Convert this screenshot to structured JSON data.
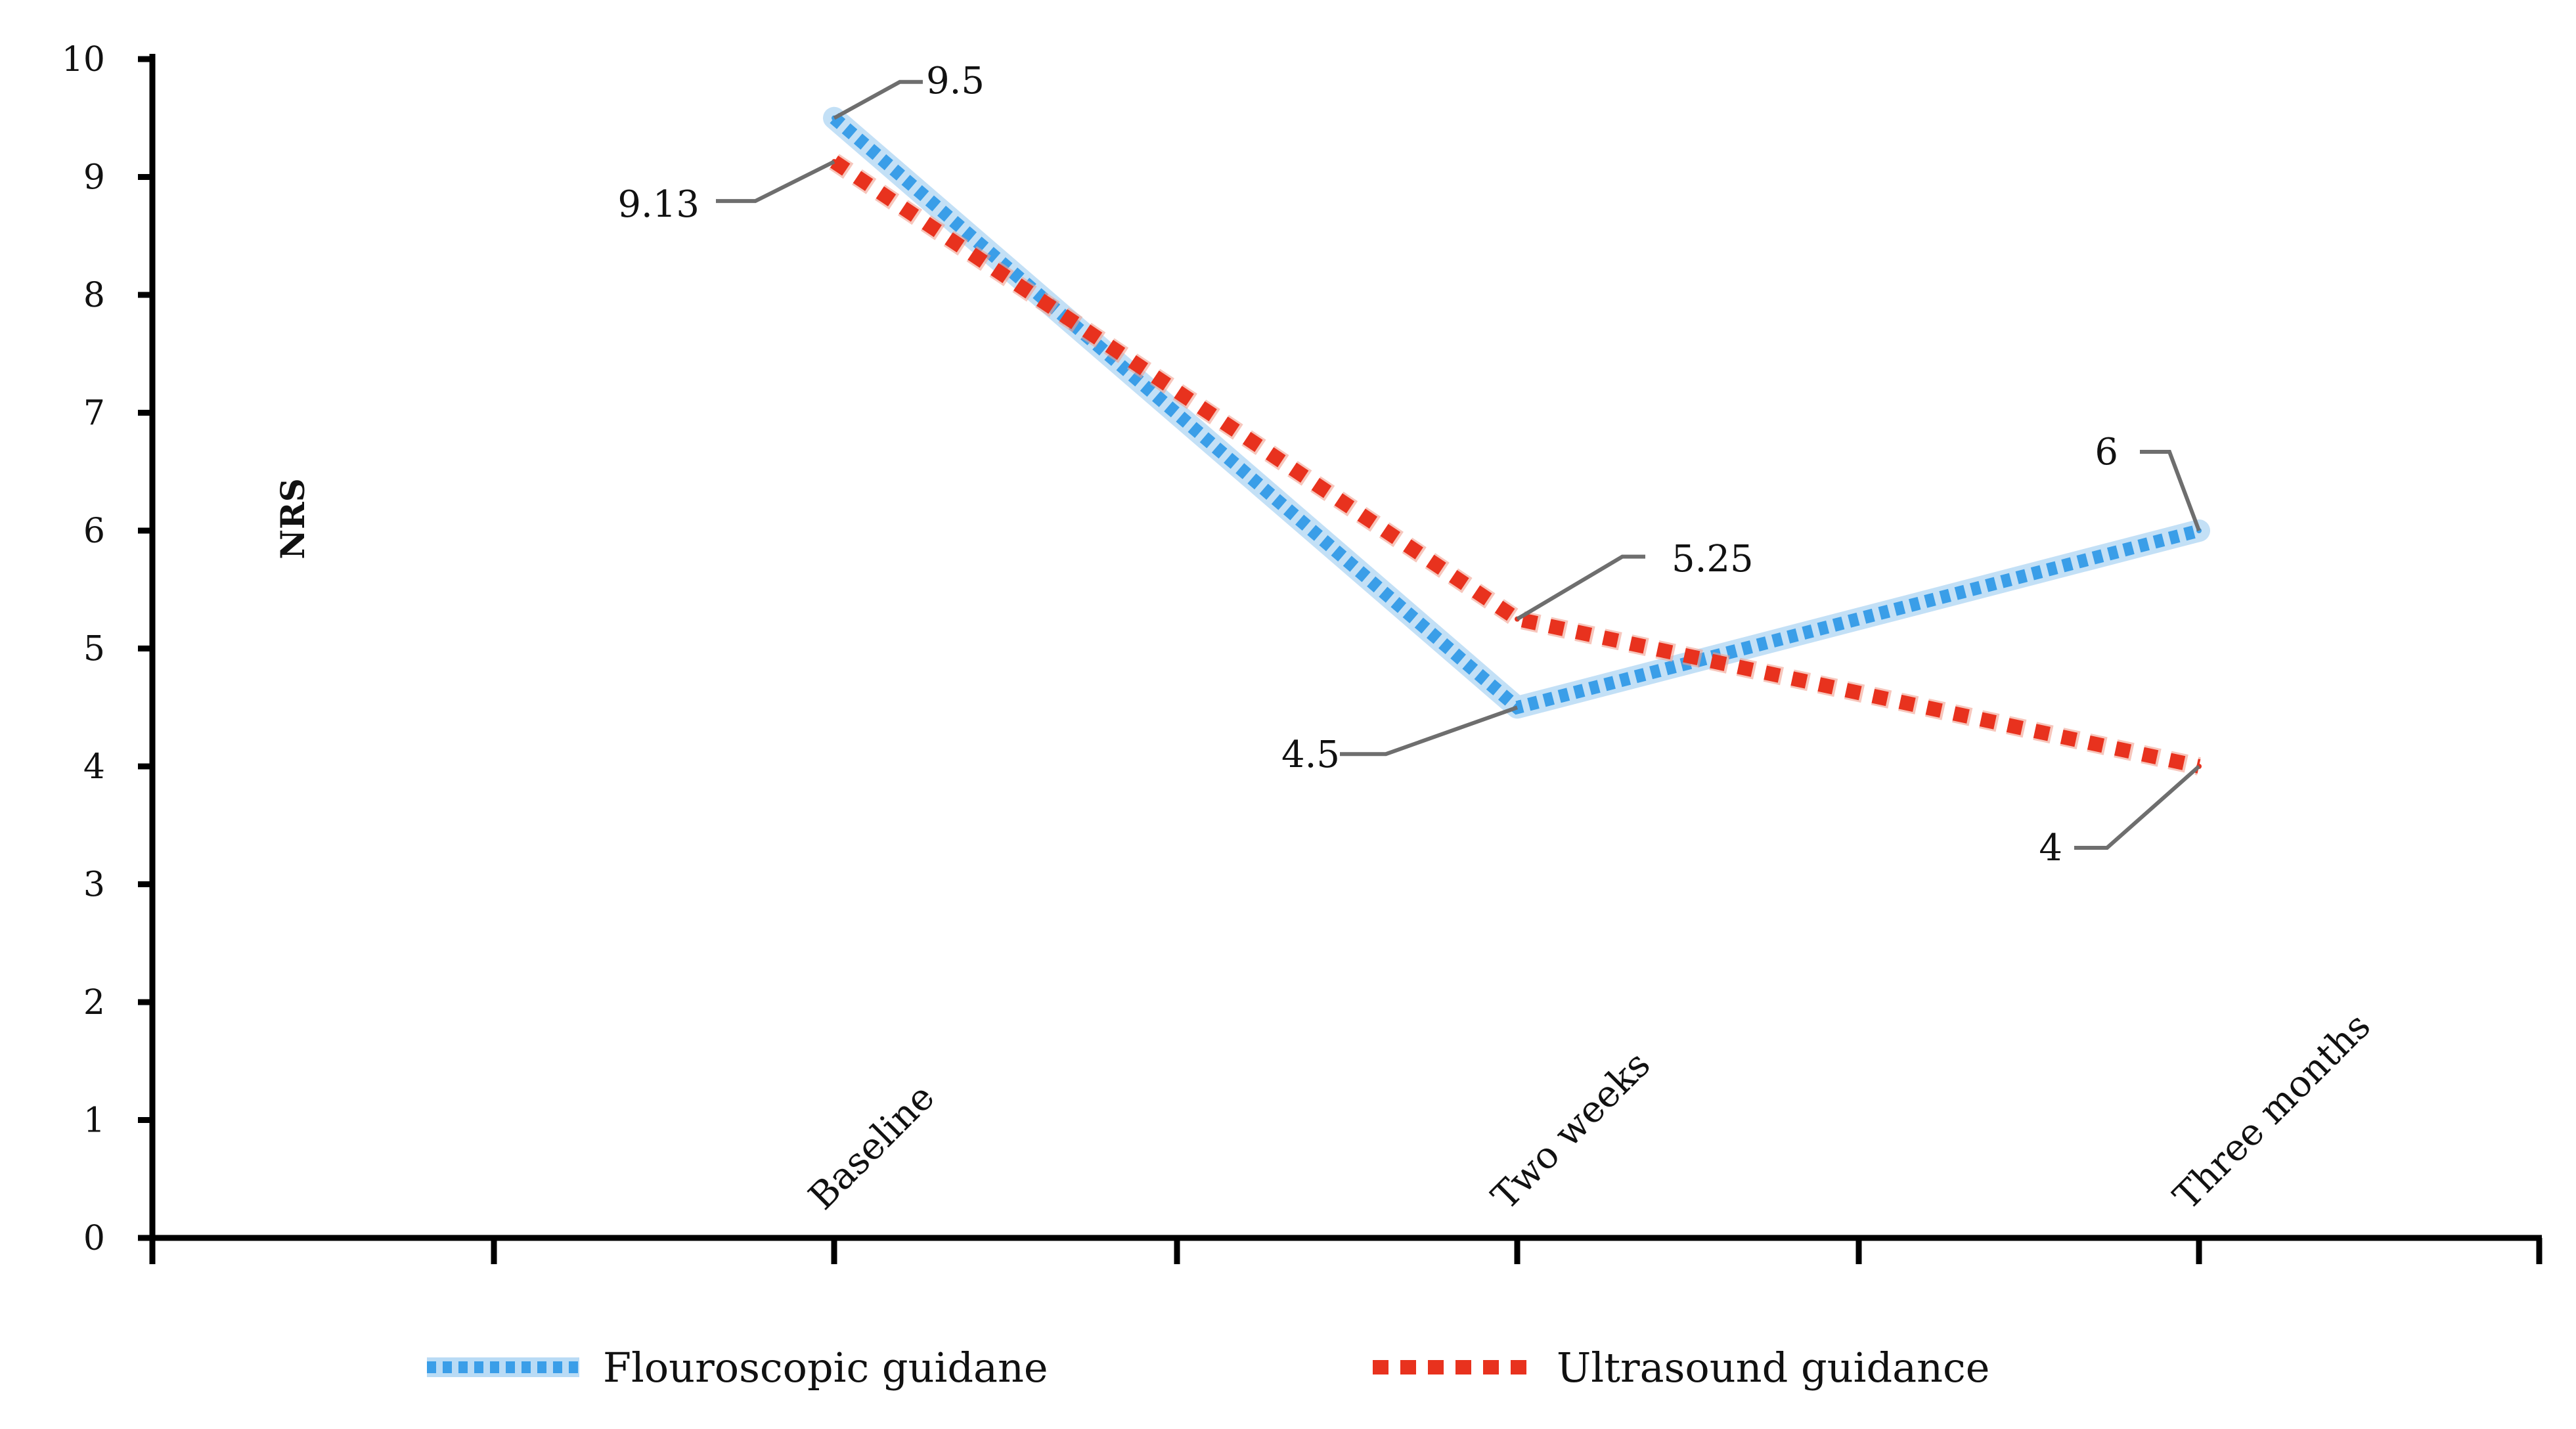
{
  "chart_data": {
    "type": "line",
    "title": "",
    "xlabel": "",
    "ylabel": "NRS",
    "ylim": [
      0,
      10
    ],
    "yticks": [
      0,
      1,
      2,
      3,
      4,
      5,
      6,
      7,
      8,
      9,
      10
    ],
    "categories": [
      "Baseline",
      "Two weeks",
      "Three months"
    ],
    "series": [
      {
        "name": "Flouroscopic guidane",
        "values": [
          9.5,
          4.5,
          6
        ],
        "data_labels": [
          "9.5",
          "4.5",
          "6"
        ],
        "color": "#3a9ee8",
        "glow": "#b9dbf5"
      },
      {
        "name": "Ultrasound guidance",
        "values": [
          9.13,
          5.25,
          4
        ],
        "data_labels": [
          "9.13",
          "5.25",
          "4"
        ],
        "color": "#e8321e",
        "glow": "#f2a090"
      }
    ],
    "legend_position": "bottom",
    "grid": false
  }
}
